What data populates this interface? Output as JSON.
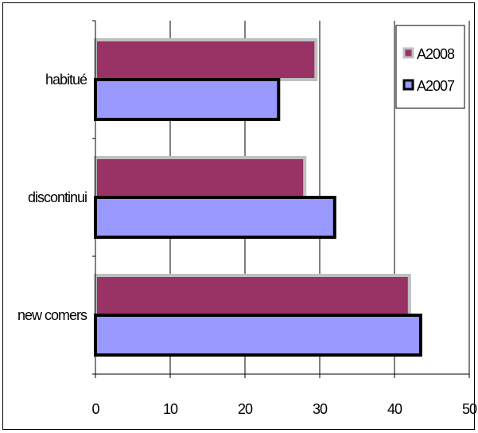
{
  "chart_data": {
    "type": "bar",
    "orientation": "horizontal",
    "categories": [
      "habitué",
      "discontinui",
      "new comers"
    ],
    "series": [
      {
        "name": "A2008",
        "values": [
          29.5,
          28,
          42
        ],
        "fill": "#993366",
        "stroke": "#c0c0c0"
      },
      {
        "name": "A2007",
        "values": [
          24.5,
          32,
          43.5
        ],
        "fill": "#9999ff",
        "stroke": "#000000"
      }
    ],
    "x_ticks": [
      "0",
      "10",
      "20",
      "30",
      "40",
      "50"
    ],
    "xlim": [
      0,
      50
    ],
    "grid": "vertical major gridlines",
    "legend": "top-right",
    "title": "",
    "xlabel": "",
    "ylabel": ""
  }
}
